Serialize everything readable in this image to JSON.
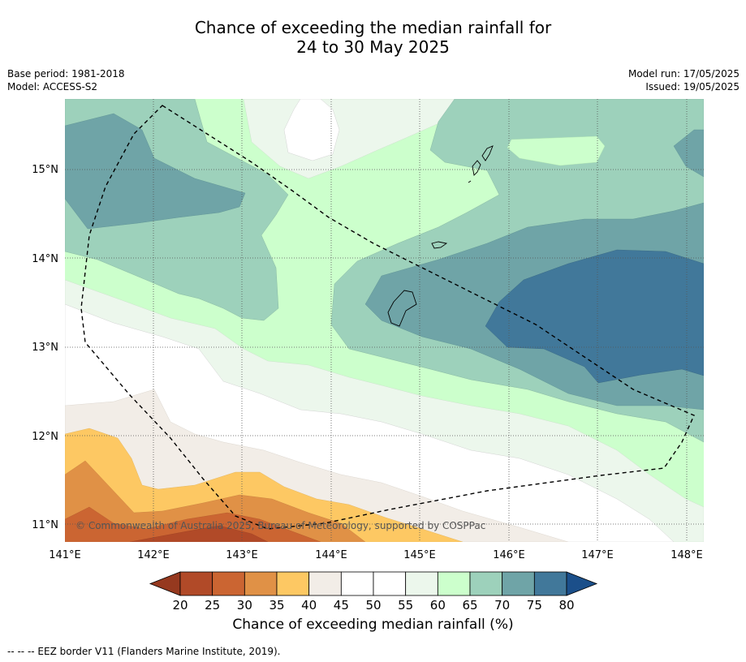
{
  "title": {
    "line1": "Chance of exceeding the median rainfall for",
    "line2": "24 to 30 May 2025"
  },
  "meta_left": {
    "base_period": "Base period: 1981-2018",
    "model": "Model: ACCESS-S2"
  },
  "meta_right": {
    "model_run": "Model run: 17/05/2025",
    "issued": "Issued: 19/05/2025"
  },
  "map": {
    "lat_labels": [
      "15°N",
      "14°N",
      "13°N",
      "12°N",
      "11°N"
    ],
    "lon_labels": [
      "141°E",
      "142°E",
      "143°E",
      "144°E",
      "145°E",
      "146°E",
      "147°E",
      "148°E"
    ],
    "copyright": "© Commonwealth of Australia 2025, Bureau of Meteorology, supported by COSPPac"
  },
  "colorbar": {
    "ticks": [
      "20",
      "25",
      "30",
      "35",
      "40",
      "45",
      "50",
      "55",
      "60",
      "65",
      "70",
      "75",
      "80"
    ],
    "colors": [
      "#b14a28",
      "#cb6532",
      "#e09146",
      "#fdc863",
      "#f2ede7",
      "#ffffff",
      "#ffffff",
      "#ecf7ec",
      "#ccffcc",
      "#9dd1bb",
      "#6fa4a7",
      "#41789a"
    ],
    "under_color": "#96391f",
    "over_color": "#1b4f8a",
    "title": "Chance of exceeding median rainfall (%)"
  },
  "footnote": "--  --  -- EEZ border V11 (Flanders Marine Institute, 2019)."
}
